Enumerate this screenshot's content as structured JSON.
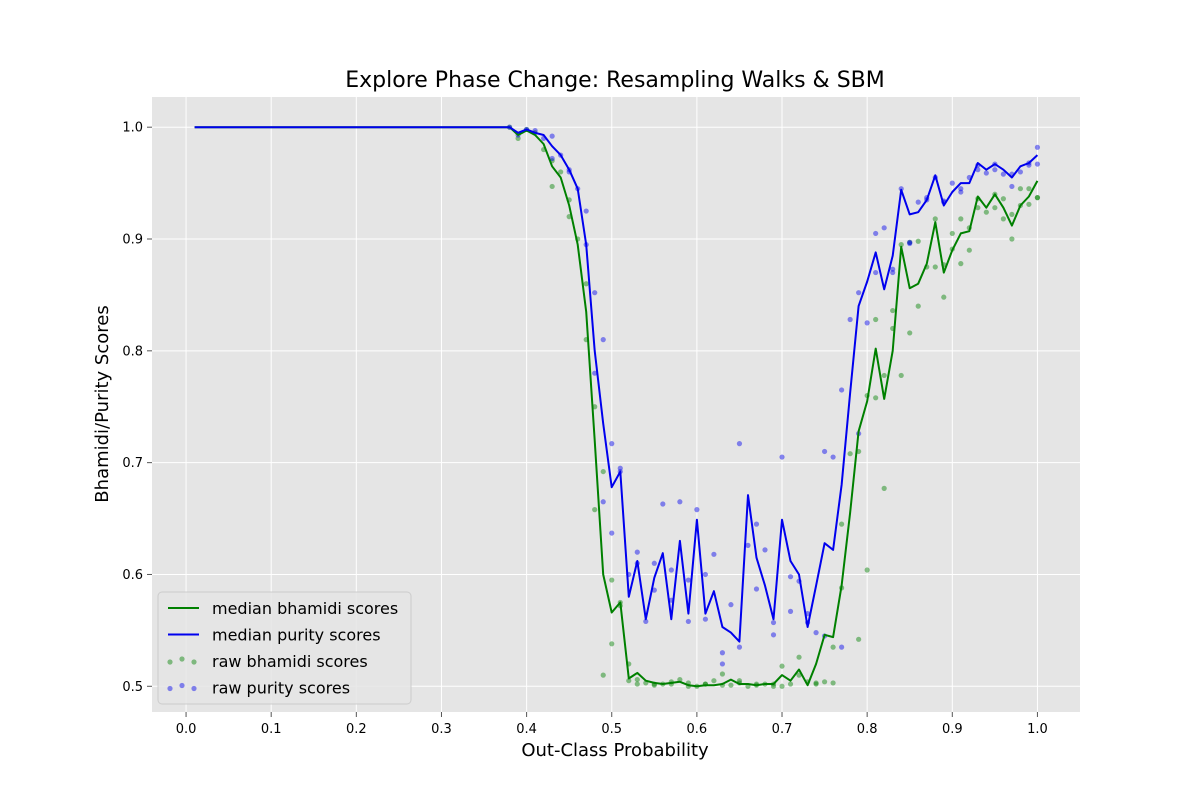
{
  "chart_data": {
    "type": "line",
    "title": "Explore Phase Change: Resampling Walks & SBM",
    "xlabel": "Out-Class Probability",
    "ylabel": "Bhamidi/Purity Scores",
    "xlim": [
      -0.04,
      1.05
    ],
    "ylim": [
      0.477,
      1.027
    ],
    "xticks": [
      "0.0",
      "0.1",
      "0.2",
      "0.3",
      "0.4",
      "0.5",
      "0.6",
      "0.7",
      "0.8",
      "0.9",
      "1.0"
    ],
    "yticks": [
      "0.5",
      "0.6",
      "0.7",
      "0.8",
      "0.9",
      "1.0"
    ],
    "grid": true,
    "legend_position": "lower-left",
    "x": [
      0.01,
      0.02,
      0.03,
      0.04,
      0.05,
      0.06,
      0.07,
      0.08,
      0.09,
      0.1,
      0.11,
      0.12,
      0.13,
      0.14,
      0.15,
      0.16,
      0.17,
      0.18,
      0.19,
      0.2,
      0.21,
      0.22,
      0.23,
      0.24,
      0.25,
      0.26,
      0.27,
      0.28,
      0.29,
      0.3,
      0.31,
      0.32,
      0.33,
      0.34,
      0.35,
      0.36,
      0.37,
      0.38,
      0.39,
      0.4,
      0.41,
      0.42,
      0.43,
      0.44,
      0.45,
      0.46,
      0.47,
      0.48,
      0.49,
      0.5,
      0.51,
      0.52,
      0.53,
      0.54,
      0.55,
      0.56,
      0.57,
      0.58,
      0.59,
      0.6,
      0.61,
      0.62,
      0.63,
      0.64,
      0.65,
      0.66,
      0.67,
      0.68,
      0.69,
      0.7,
      0.71,
      0.72,
      0.73,
      0.74,
      0.75,
      0.76,
      0.77,
      0.78,
      0.79,
      0.8,
      0.81,
      0.82,
      0.83,
      0.84,
      0.85,
      0.86,
      0.87,
      0.88,
      0.89,
      0.9,
      0.91,
      0.92,
      0.93,
      0.94,
      0.95,
      0.96,
      0.97,
      0.98,
      0.99,
      1.0
    ],
    "series": [
      {
        "name": "median bhamidi scores",
        "color": "#008000",
        "kind": "line",
        "values": [
          1,
          1,
          1,
          1,
          1,
          1,
          1,
          1,
          1,
          1,
          1,
          1,
          1,
          1,
          1,
          1,
          1,
          1,
          1,
          1,
          1,
          1,
          1,
          1,
          1,
          1,
          1,
          1,
          1,
          1,
          1,
          1,
          1,
          1,
          1,
          1,
          1,
          1,
          0.993,
          0.997,
          0.993,
          0.985,
          0.965,
          0.955,
          0.93,
          0.895,
          0.835,
          0.72,
          0.6,
          0.566,
          0.575,
          0.507,
          0.512,
          0.505,
          0.503,
          0.502,
          0.503,
          0.504,
          0.501,
          0.5,
          0.501,
          0.501,
          0.502,
          0.506,
          0.502,
          0.502,
          0.501,
          0.502,
          0.502,
          0.51,
          0.505,
          0.515,
          0.501,
          0.52,
          0.546,
          0.544,
          0.59,
          0.655,
          0.728,
          0.755,
          0.802,
          0.757,
          0.8,
          0.893,
          0.856,
          0.86,
          0.878,
          0.915,
          0.87,
          0.89,
          0.905,
          0.907,
          0.938,
          0.928,
          0.94,
          0.928,
          0.912,
          0.93,
          0.938,
          0.952
        ]
      },
      {
        "name": "median purity scores",
        "color": "#0000ee",
        "kind": "line",
        "values": [
          1,
          1,
          1,
          1,
          1,
          1,
          1,
          1,
          1,
          1,
          1,
          1,
          1,
          1,
          1,
          1,
          1,
          1,
          1,
          1,
          1,
          1,
          1,
          1,
          1,
          1,
          1,
          1,
          1,
          1,
          1,
          1,
          1,
          1,
          1,
          1,
          1,
          1,
          0.995,
          0.998,
          0.995,
          0.993,
          0.983,
          0.975,
          0.962,
          0.945,
          0.895,
          0.8,
          0.735,
          0.678,
          0.692,
          0.58,
          0.612,
          0.56,
          0.597,
          0.619,
          0.56,
          0.63,
          0.565,
          0.649,
          0.565,
          0.585,
          0.553,
          0.548,
          0.54,
          0.671,
          0.615,
          0.59,
          0.56,
          0.649,
          0.612,
          0.6,
          0.553,
          0.59,
          0.628,
          0.622,
          0.68,
          0.762,
          0.84,
          0.862,
          0.888,
          0.855,
          0.885,
          0.944,
          0.922,
          0.924,
          0.935,
          0.957,
          0.93,
          0.942,
          0.95,
          0.95,
          0.968,
          0.962,
          0.967,
          0.962,
          0.955,
          0.965,
          0.968,
          0.975
        ]
      },
      {
        "name": "raw bhamidi scores",
        "color": "#008000",
        "kind": "scatter",
        "x": [
          0.38,
          0.39,
          0.4,
          0.41,
          0.42,
          0.43,
          0.44,
          0.45,
          0.46,
          0.47,
          0.48,
          0.49,
          0.5,
          0.51,
          0.52,
          0.53,
          0.54,
          0.55,
          0.56,
          0.57,
          0.58,
          0.59,
          0.6,
          0.61,
          0.62,
          0.63,
          0.64,
          0.65,
          0.66,
          0.67,
          0.68,
          0.69,
          0.7,
          0.71,
          0.72,
          0.73,
          0.74,
          0.75,
          0.76,
          0.77,
          0.78,
          0.79,
          0.8,
          0.81,
          0.82,
          0.83,
          0.84,
          0.85,
          0.86,
          0.87,
          0.88,
          0.89,
          0.9,
          0.91,
          0.92,
          0.93,
          0.94,
          0.95,
          0.96,
          0.97,
          0.98,
          0.99,
          1.0,
          0.43,
          0.45,
          0.47,
          0.48,
          0.49,
          0.5,
          0.51,
          0.52,
          0.53,
          0.55,
          0.57,
          0.59,
          0.61,
          0.63,
          0.65,
          0.67,
          0.69,
          0.7,
          0.72,
          0.74,
          0.76,
          0.77,
          0.79,
          0.8,
          0.81,
          0.82,
          0.83,
          0.84,
          0.85,
          0.86,
          0.88,
          0.89,
          0.9,
          0.91,
          0.92,
          0.93,
          0.95,
          0.96,
          0.97,
          0.98,
          0.99,
          1.0
        ],
        "values": [
          1.0,
          0.99,
          0.998,
          0.995,
          0.98,
          0.97,
          0.96,
          0.935,
          0.9,
          0.81,
          0.75,
          0.51,
          0.595,
          0.572,
          0.505,
          0.502,
          0.503,
          0.501,
          0.502,
          0.502,
          0.506,
          0.503,
          0.5,
          0.502,
          0.505,
          0.501,
          0.501,
          0.505,
          0.5,
          0.501,
          0.502,
          0.502,
          0.518,
          0.502,
          0.526,
          0.504,
          0.502,
          0.504,
          0.503,
          0.645,
          0.708,
          0.71,
          0.76,
          0.828,
          0.677,
          0.82,
          0.895,
          0.816,
          0.84,
          0.875,
          0.918,
          0.848,
          0.905,
          0.918,
          0.91,
          0.936,
          0.924,
          0.94,
          0.918,
          0.9,
          0.93,
          0.945,
          0.937,
          0.947,
          0.92,
          0.86,
          0.658,
          0.692,
          0.538,
          0.575,
          0.52,
          0.506,
          0.502,
          0.504,
          0.5,
          0.502,
          0.511,
          0.503,
          0.502,
          0.5,
          0.5,
          0.51,
          0.503,
          0.535,
          0.588,
          0.542,
          0.604,
          0.758,
          0.778,
          0.836,
          0.778,
          0.897,
          0.898,
          0.875,
          0.877,
          0.891,
          0.878,
          0.89,
          0.928,
          0.928,
          0.936,
          0.922,
          0.945,
          0.931,
          0.937
        ]
      },
      {
        "name": "raw purity scores",
        "color": "#0000ee",
        "kind": "scatter",
        "x": [
          0.38,
          0.39,
          0.4,
          0.41,
          0.42,
          0.43,
          0.44,
          0.45,
          0.46,
          0.47,
          0.48,
          0.49,
          0.5,
          0.51,
          0.52,
          0.53,
          0.54,
          0.55,
          0.56,
          0.57,
          0.58,
          0.59,
          0.6,
          0.61,
          0.62,
          0.63,
          0.64,
          0.65,
          0.66,
          0.67,
          0.68,
          0.69,
          0.7,
          0.71,
          0.72,
          0.73,
          0.74,
          0.75,
          0.76,
          0.77,
          0.78,
          0.79,
          0.8,
          0.81,
          0.82,
          0.83,
          0.84,
          0.85,
          0.86,
          0.87,
          0.88,
          0.89,
          0.9,
          0.91,
          0.92,
          0.93,
          0.94,
          0.95,
          0.96,
          0.97,
          0.98,
          0.99,
          1.0,
          0.43,
          0.45,
          0.47,
          0.48,
          0.49,
          0.5,
          0.51,
          0.53,
          0.55,
          0.57,
          0.59,
          0.61,
          0.63,
          0.65,
          0.67,
          0.69,
          0.71,
          0.73,
          0.75,
          0.77,
          0.79,
          0.81,
          0.83,
          0.85,
          0.87,
          0.89,
          0.91,
          0.93,
          0.95,
          0.97,
          0.99,
          1.0
        ],
        "values": [
          1.0,
          0.993,
          0.998,
          0.997,
          0.99,
          0.992,
          0.975,
          0.962,
          0.945,
          0.925,
          0.852,
          0.81,
          0.717,
          0.695,
          0.6,
          0.62,
          0.558,
          0.61,
          0.663,
          0.577,
          0.665,
          0.558,
          0.658,
          0.56,
          0.618,
          0.53,
          0.573,
          0.717,
          0.626,
          0.645,
          0.622,
          0.546,
          0.705,
          0.598,
          0.594,
          0.557,
          0.548,
          0.71,
          0.705,
          0.765,
          0.828,
          0.852,
          0.825,
          0.905,
          0.91,
          0.873,
          0.945,
          0.896,
          0.933,
          0.937,
          0.955,
          0.934,
          0.95,
          0.942,
          0.955,
          0.966,
          0.959,
          0.967,
          0.958,
          0.947,
          0.96,
          0.966,
          0.982,
          0.972,
          0.96,
          0.895,
          0.78,
          0.665,
          0.637,
          0.692,
          0.61,
          0.586,
          0.604,
          0.595,
          0.6,
          0.52,
          0.535,
          0.587,
          0.557,
          0.567,
          0.565,
          0.545,
          0.535,
          0.726,
          0.87,
          0.87,
          0.897,
          0.935,
          0.933,
          0.945,
          0.962,
          0.962,
          0.958,
          0.968,
          0.967
        ]
      }
    ]
  }
}
